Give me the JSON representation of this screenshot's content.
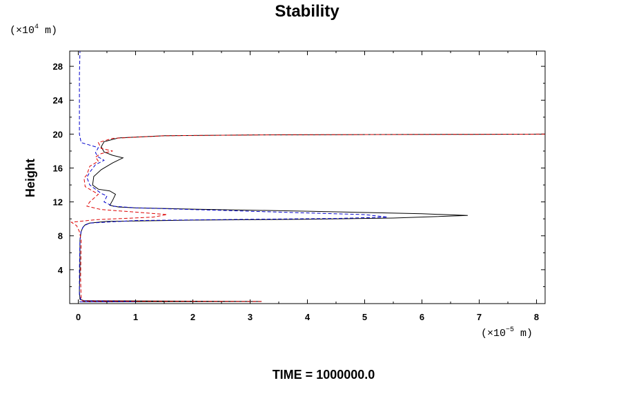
{
  "chart_data": {
    "type": "line",
    "title": "Stability",
    "ylabel": "Height",
    "xlabel": "",
    "y_unit": {
      "prefix": "(×10",
      "exp": "4",
      "suffix": " m)"
    },
    "x_unit": {
      "prefix": "(×10",
      "exp": "−5",
      "suffix": " m)"
    },
    "footer": "TIME = 1000000.0",
    "xlim": [
      -0.15,
      8.15
    ],
    "ylim": [
      0,
      29.8
    ],
    "x_ticks": [
      0,
      1,
      2,
      3,
      4,
      5,
      6,
      7,
      8
    ],
    "x_tick_labels": [
      "0",
      "1",
      "2",
      "3",
      "4",
      "5",
      "6",
      "7",
      "8"
    ],
    "y_ticks": [
      4,
      8,
      12,
      16,
      20,
      24,
      28
    ],
    "y_tick_labels": [
      "4",
      "8",
      "12",
      "16",
      "20",
      "24",
      "28"
    ],
    "grid": false,
    "series": [
      {
        "color": "#000000",
        "dash": "solid",
        "points": [
          [
            0.02,
            0.2
          ],
          [
            3.2,
            0.25
          ],
          [
            0.1,
            0.35
          ],
          [
            0.03,
            0.5
          ],
          [
            0.02,
            1.5
          ],
          [
            0.03,
            4.0
          ],
          [
            0.03,
            7.5
          ],
          [
            0.05,
            8.5
          ],
          [
            0.08,
            9.0
          ],
          [
            0.12,
            9.3
          ],
          [
            0.2,
            9.5
          ],
          [
            0.5,
            9.7
          ],
          [
            2.0,
            9.85
          ],
          [
            4.0,
            9.95
          ],
          [
            5.5,
            10.1
          ],
          [
            6.8,
            10.4
          ],
          [
            6.0,
            10.6
          ],
          [
            4.0,
            10.9
          ],
          [
            2.0,
            11.15
          ],
          [
            1.0,
            11.3
          ],
          [
            0.7,
            11.4
          ],
          [
            0.55,
            11.6
          ],
          [
            0.6,
            12.2
          ],
          [
            0.65,
            12.9
          ],
          [
            0.55,
            13.3
          ],
          [
            0.35,
            13.5
          ],
          [
            0.25,
            14.0
          ],
          [
            0.27,
            15.0
          ],
          [
            0.4,
            15.8
          ],
          [
            0.6,
            16.6
          ],
          [
            0.78,
            17.2
          ],
          [
            0.6,
            17.5
          ],
          [
            0.45,
            17.9
          ],
          [
            0.4,
            18.5
          ],
          [
            0.45,
            19.1
          ],
          [
            0.7,
            19.55
          ],
          [
            1.5,
            19.8
          ],
          [
            3.0,
            19.9
          ],
          [
            5.0,
            19.95
          ],
          [
            6.9,
            19.97
          ],
          [
            8.15,
            20.0
          ]
        ]
      },
      {
        "color": "#0000cc",
        "dash": "dashed",
        "points": [
          [
            0.03,
            0.2
          ],
          [
            1.0,
            0.25
          ],
          [
            0.05,
            0.35
          ],
          [
            0.02,
            1.0
          ],
          [
            0.02,
            4.0
          ],
          [
            0.03,
            7.5
          ],
          [
            0.05,
            8.6
          ],
          [
            0.1,
            9.2
          ],
          [
            0.2,
            9.5
          ],
          [
            1.0,
            9.8
          ],
          [
            3.0,
            9.95
          ],
          [
            4.5,
            10.05
          ],
          [
            5.4,
            10.2
          ],
          [
            5.0,
            10.5
          ],
          [
            3.5,
            10.8
          ],
          [
            2.0,
            11.1
          ],
          [
            1.0,
            11.3
          ],
          [
            0.6,
            11.5
          ],
          [
            0.45,
            12.0
          ],
          [
            0.5,
            12.7
          ],
          [
            0.4,
            13.0
          ],
          [
            0.3,
            13.5
          ],
          [
            0.2,
            14.0
          ],
          [
            0.15,
            14.9
          ],
          [
            0.2,
            15.5
          ],
          [
            0.3,
            16.4
          ],
          [
            0.45,
            16.9
          ],
          [
            0.35,
            17.3
          ],
          [
            0.3,
            17.8
          ],
          [
            0.35,
            18.4
          ],
          [
            0.2,
            18.7
          ],
          [
            0.05,
            19.0
          ],
          [
            0.02,
            20.0
          ],
          [
            0.02,
            24.0
          ],
          [
            0.02,
            27.0
          ],
          [
            0.03,
            29.8
          ]
        ]
      },
      {
        "color": "#dd0000",
        "dash": "dashed",
        "points": [
          [
            3.2,
            0.25
          ],
          [
            0.08,
            0.3
          ],
          [
            0.05,
            0.5
          ],
          [
            0.04,
            3.0
          ],
          [
            0.05,
            7.5
          ],
          [
            0.02,
            8.5
          ],
          [
            -0.03,
            9.2
          ],
          [
            -0.12,
            9.6
          ],
          [
            0.3,
            9.9
          ],
          [
            1.3,
            10.2
          ],
          [
            1.55,
            10.5
          ],
          [
            1.0,
            10.8
          ],
          [
            0.4,
            11.1
          ],
          [
            0.15,
            11.5
          ],
          [
            0.2,
            12.0
          ],
          [
            0.3,
            12.6
          ],
          [
            0.35,
            12.9
          ],
          [
            0.25,
            13.3
          ],
          [
            0.12,
            13.8
          ],
          [
            0.1,
            14.8
          ],
          [
            0.15,
            15.2
          ],
          [
            0.2,
            16.2
          ],
          [
            0.35,
            16.8
          ],
          [
            0.3,
            17.3
          ],
          [
            0.4,
            17.7
          ],
          [
            0.6,
            18.0
          ],
          [
            0.4,
            18.3
          ],
          [
            0.35,
            19.0
          ],
          [
            0.6,
            19.5
          ],
          [
            1.5,
            19.8
          ],
          [
            3.5,
            19.92
          ],
          [
            6.0,
            19.96
          ],
          [
            8.15,
            20.0
          ]
        ]
      }
    ]
  }
}
